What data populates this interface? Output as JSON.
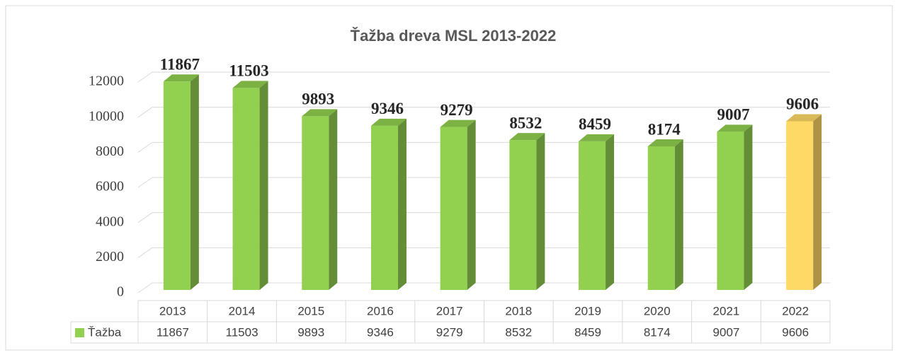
{
  "chart_data": {
    "type": "bar3d",
    "title": "Ťažba dreva MSL 2013-2022",
    "categories": [
      "2013",
      "2014",
      "2015",
      "2016",
      "2017",
      "2018",
      "2019",
      "2020",
      "2021",
      "2022"
    ],
    "series": [
      {
        "name": "Ťažba",
        "color": "#92d050",
        "values": [
          11867,
          11503,
          9893,
          9346,
          9279,
          8532,
          8459,
          8174,
          9007,
          9606
        ],
        "colors": [
          "#92d050",
          "#92d050",
          "#92d050",
          "#92d050",
          "#92d050",
          "#92d050",
          "#92d050",
          "#92d050",
          "#92d050",
          "#ffd966"
        ]
      }
    ],
    "ylim": [
      0,
      12000
    ],
    "yticks": [
      0,
      2000,
      4000,
      6000,
      8000,
      10000,
      12000
    ],
    "grid": true,
    "data_table": true
  }
}
